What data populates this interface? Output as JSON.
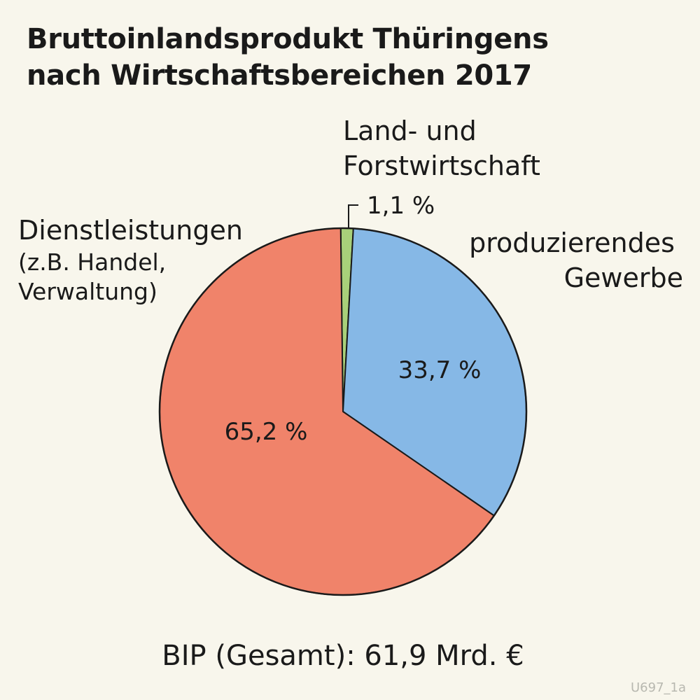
{
  "title_line1": "Bruttoinlandsprodukt Thüringens",
  "title_line2": "nach Wirtschaftsbereichen 2017",
  "total_text": "BIP (Gesamt): 61,9 Mrd. €",
  "code_text": "U697_1a",
  "chart_data": {
    "type": "pie",
    "title": "Bruttoinlandsprodukt Thüringens nach Wirtschaftsbereichen 2017",
    "unit": "%",
    "slices": [
      {
        "key": "land",
        "label_lines": [
          "Land- und",
          "Forstwirtschaft"
        ],
        "value": 1.1,
        "value_label": "1,1 %",
        "color": "#a8d07a"
      },
      {
        "key": "prod",
        "label_lines": [
          "produzierendes",
          "Gewerbe"
        ],
        "value": 33.7,
        "value_label": "33,7 %",
        "color": "#86b8e6"
      },
      {
        "key": "dienst",
        "label_lines": [
          "Dienstleistungen",
          "(z.B. Handel,",
          "Verwaltung)"
        ],
        "value": 65.2,
        "value_label": "65,2 %",
        "color": "#f0836a"
      }
    ]
  }
}
